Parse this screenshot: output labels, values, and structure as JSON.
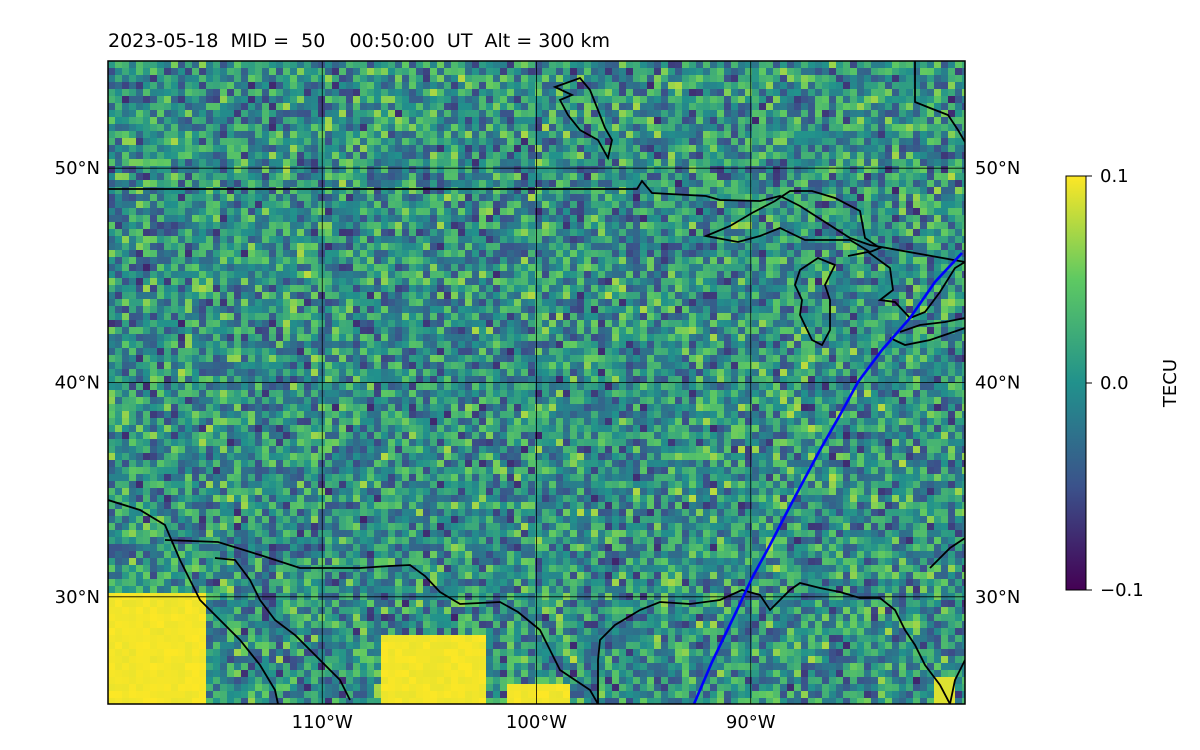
{
  "title": "2023-05-18  MID =  50    00:50:00  UT  Alt = 300 km",
  "map": {
    "lon_range": [
      -120,
      -80
    ],
    "lat_range": [
      25,
      55
    ],
    "lat_ticks": [
      {
        "value": 30,
        "label": "30°N"
      },
      {
        "value": 40,
        "label": "40°N"
      },
      {
        "value": 50,
        "label": "50°N"
      }
    ],
    "lon_ticks": [
      {
        "value": -110,
        "label": "110°W"
      },
      {
        "value": -100,
        "label": "100°W"
      },
      {
        "value": -90,
        "label": "90°W"
      }
    ],
    "gridlines": true,
    "terminator_color": "#0000ff"
  },
  "colorbar": {
    "label": "TECU",
    "min": -0.1,
    "max": 0.1,
    "tick_labels": [
      {
        "value": 0.1,
        "label": "0.1"
      },
      {
        "value": 0.0,
        "label": "0.0"
      },
      {
        "value": -0.1,
        "label": "−0.1"
      }
    ],
    "colormap": [
      "#440154",
      "#3b528b",
      "#21918c",
      "#5ec962",
      "#fde725"
    ]
  }
}
